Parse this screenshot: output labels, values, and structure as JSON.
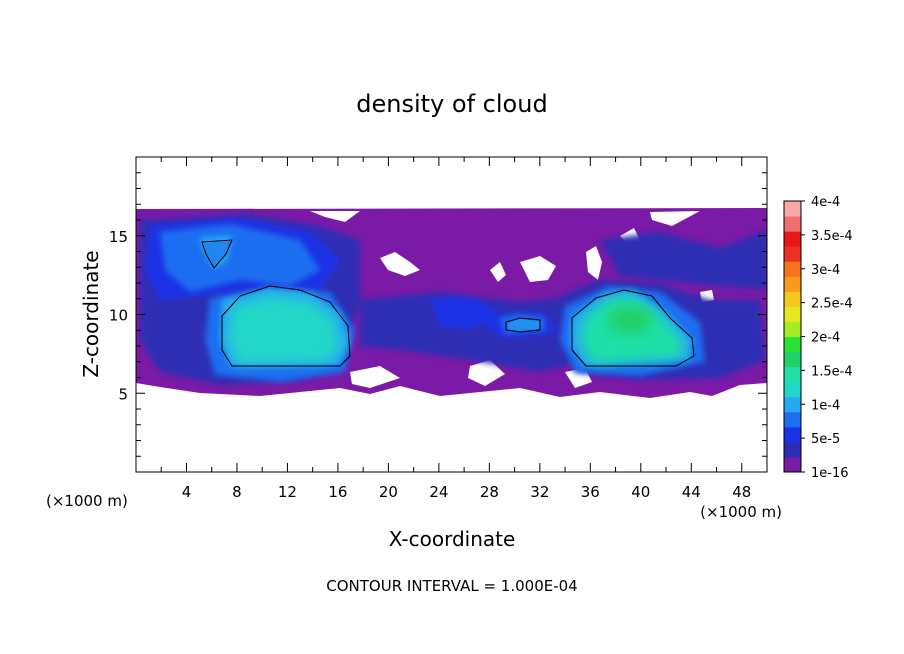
{
  "chart_data": {
    "type": "heatmap",
    "title": "density of cloud",
    "xlabel": "X-coordinate",
    "ylabel": "Z-coordinate",
    "x_unit_left": "(×1000 m)",
    "x_unit_right": "(×1000 m)",
    "footer": "CONTOUR INTERVAL = 1.000E-04",
    "xlim": [
      0,
      50
    ],
    "ylim": [
      0,
      20
    ],
    "x_ticks": [
      4,
      8,
      12,
      16,
      20,
      24,
      28,
      32,
      36,
      40,
      44,
      48
    ],
    "y_ticks": [
      5,
      10,
      15
    ],
    "colorbar": {
      "labels": [
        "1e-16",
        "5e-5",
        "1e-4",
        "1.5e-4",
        "2e-4",
        "2.5e-4",
        "3e-4",
        "3.5e-4",
        "4e-4"
      ],
      "colors": [
        "#7a1aa6",
        "#2d2db4",
        "#1a33e6",
        "#1f6ef0",
        "#26a8f2",
        "#22d7c8",
        "#1fe0a6",
        "#22d068",
        "#2ae234",
        "#a6ec20",
        "#e6e81e",
        "#f5c81e",
        "#f89a1c",
        "#f6721c",
        "#ee3020",
        "#e81818",
        "#f07070",
        "#f8a8a8"
      ]
    },
    "grid": false,
    "legend_position": "right"
  }
}
